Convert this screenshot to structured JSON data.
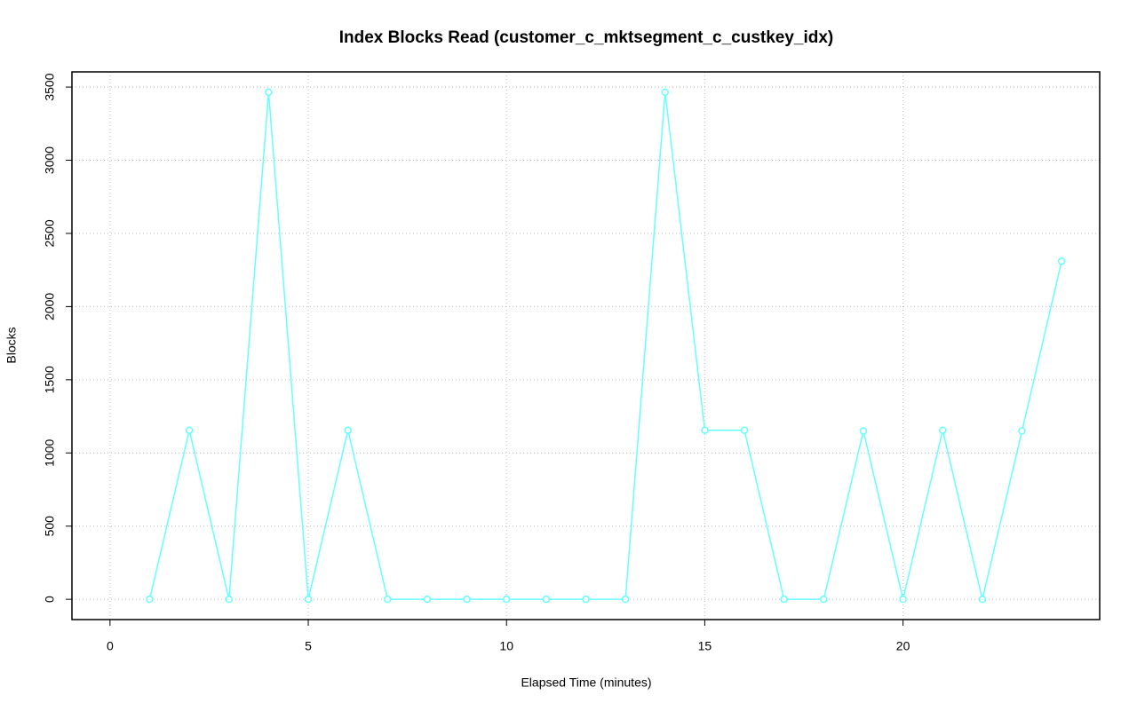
{
  "chart_data": {
    "type": "line",
    "title": "Index Blocks Read (customer_c_mktsegment_c_custkey_idx)",
    "x_label": "Elapsed Time (minutes)",
    "y_label": "Blocks",
    "x": [
      1,
      2,
      3,
      4,
      5,
      6,
      7,
      8,
      9,
      10,
      11,
      12,
      13,
      14,
      15,
      16,
      17,
      18,
      19,
      20,
      21,
      22,
      23,
      24
    ],
    "series": [
      {
        "name": "Blocks",
        "color": "#66ffff",
        "values": [
          0,
          1155,
          0,
          3465,
          0,
          1155,
          0,
          0,
          0,
          0,
          0,
          0,
          0,
          3465,
          1155,
          1155,
          0,
          0,
          1150,
          0,
          1155,
          0,
          1150,
          2310
        ]
      }
    ],
    "xlim": [
      -0.96,
      24.96
    ],
    "ylim": [
      -138.6,
      3603.6
    ],
    "xticks": [
      0,
      5,
      10,
      15,
      20
    ],
    "yticks": [
      0,
      500,
      1000,
      1500,
      2000,
      2500,
      3000,
      3500
    ],
    "grid": true
  }
}
